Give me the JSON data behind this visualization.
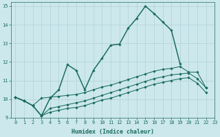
{
  "xlabel": "Humidex (Indice chaleur)",
  "bg_color": "#cce8ec",
  "grid_color": "#b0d0d8",
  "line_color": "#1a6b60",
  "xlim": [
    -0.5,
    23
  ],
  "ylim": [
    9,
    15.2
  ],
  "xticks": [
    0,
    1,
    2,
    3,
    4,
    5,
    6,
    7,
    8,
    9,
    10,
    11,
    12,
    13,
    14,
    15,
    16,
    17,
    18,
    19,
    20,
    21,
    22,
    23
  ],
  "yticks": [
    9,
    10,
    11,
    12,
    13,
    14,
    15
  ],
  "s1_x": [
    0,
    1,
    2,
    3,
    4,
    5,
    6,
    7,
    8,
    9,
    10,
    11,
    12,
    13,
    14,
    15,
    16,
    17,
    18,
    19
  ],
  "s1_y": [
    10.1,
    9.9,
    9.65,
    9.1,
    10.05,
    10.5,
    11.85,
    11.55,
    10.5,
    11.55,
    12.2,
    12.9,
    12.95,
    13.8,
    14.35,
    15.0,
    14.6,
    14.15,
    13.7,
    11.9
  ],
  "s2_x": [
    0,
    1,
    2,
    3,
    4,
    5,
    6,
    7,
    8,
    9,
    10,
    11,
    12,
    13,
    14,
    15,
    16,
    17,
    18,
    19,
    20,
    21,
    22
  ],
  "s2_y": [
    10.1,
    9.9,
    9.65,
    10.05,
    10.1,
    10.15,
    10.2,
    10.25,
    10.35,
    10.5,
    10.65,
    10.75,
    10.9,
    11.05,
    11.2,
    11.35,
    11.5,
    11.6,
    11.65,
    11.75,
    11.45,
    11.45,
    10.6
  ],
  "s3_x": [
    0,
    1,
    2,
    3,
    4,
    5,
    6,
    7,
    8,
    9,
    10,
    11,
    12,
    13,
    14,
    15,
    16,
    17,
    18,
    19,
    20,
    21,
    22
  ],
  "s3_y": [
    10.1,
    9.9,
    9.65,
    9.1,
    9.5,
    9.6,
    9.7,
    9.8,
    9.9,
    10.05,
    10.2,
    10.35,
    10.5,
    10.65,
    10.8,
    10.95,
    11.1,
    11.2,
    11.3,
    11.35,
    11.4,
    11.1,
    10.6
  ],
  "s4_x": [
    0,
    1,
    2,
    3,
    4,
    5,
    6,
    7,
    8,
    9,
    10,
    11,
    12,
    13,
    14,
    15,
    16,
    17,
    18,
    19,
    20,
    21,
    22
  ],
  "s4_y": [
    10.1,
    9.9,
    9.65,
    9.1,
    9.3,
    9.4,
    9.5,
    9.55,
    9.65,
    9.8,
    9.95,
    10.05,
    10.2,
    10.35,
    10.5,
    10.65,
    10.8,
    10.9,
    11.0,
    11.1,
    11.15,
    10.85,
    10.35
  ]
}
